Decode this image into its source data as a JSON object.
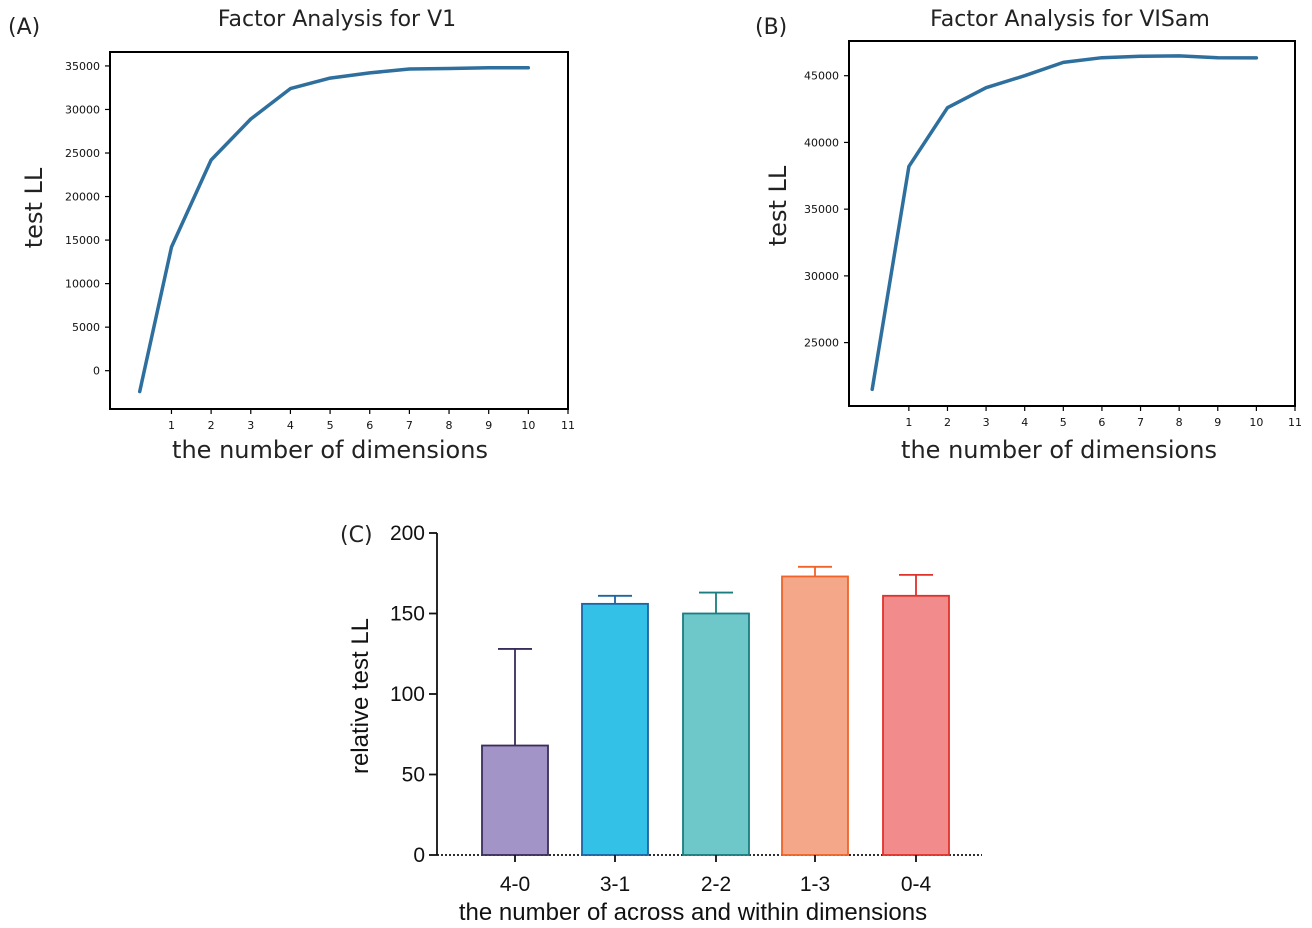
{
  "chart_data": [
    {
      "panel": "(A)",
      "type": "line",
      "title": "Factor Analysis for V1",
      "xlabel": "the number of dimensions",
      "ylabel": "test LL",
      "xticks": [
        1,
        2,
        3,
        4,
        5,
        6,
        7,
        8,
        9,
        10,
        11
      ],
      "yticks": [
        0,
        5000,
        10000,
        15000,
        20000,
        25000,
        30000,
        35000
      ],
      "xlim": [
        -0.55,
        11
      ],
      "ylim": [
        -4400,
        36600
      ],
      "x": [
        0.2,
        1,
        2,
        3,
        4,
        5,
        6,
        7,
        8,
        9,
        10
      ],
      "y": [
        -2400,
        14200,
        24200,
        28900,
        32400,
        33600,
        34200,
        34650,
        34700,
        34800,
        34800
      ],
      "color": "#2e6f9e",
      "grid": false
    },
    {
      "panel": "(B)",
      "type": "line",
      "title": "Factor Analysis for VISam",
      "xlabel": "the number of dimensions",
      "ylabel": "test LL",
      "xticks": [
        1,
        2,
        3,
        4,
        5,
        6,
        7,
        8,
        9,
        10,
        11
      ],
      "yticks": [
        25000,
        30000,
        35000,
        40000,
        45000
      ],
      "xlim": [
        -0.55,
        11
      ],
      "ylim": [
        20250,
        47600
      ],
      "x": [
        0.05,
        1,
        2,
        3,
        4,
        5,
        6,
        7,
        8,
        9,
        10
      ],
      "y": [
        21500,
        38200,
        42600,
        44100,
        45000,
        46000,
        46350,
        46450,
        46480,
        46350,
        46330
      ],
      "color": "#2e6f9e",
      "grid": false
    },
    {
      "panel": "(C)",
      "type": "bar",
      "xlabel": "the number of across and within dimensions",
      "ylabel": "relative test LL",
      "categories": [
        "4-0",
        "3-1",
        "2-2",
        "1-3",
        "0-4"
      ],
      "values": [
        68,
        156,
        150,
        173,
        161
      ],
      "error_upper": [
        128,
        161,
        163,
        179,
        174
      ],
      "yticks": [
        0,
        50,
        100,
        150,
        200
      ],
      "ylim": [
        0,
        200
      ],
      "fill_colors": [
        "#a394c8",
        "#33c1e8",
        "#6ec7c9",
        "#f5a78a",
        "#f28b8b"
      ],
      "edge_colors": [
        "#3b2d5b",
        "#1f63a0",
        "#1a7d80",
        "#f0632a",
        "#e0312b"
      ],
      "grid": false
    }
  ]
}
